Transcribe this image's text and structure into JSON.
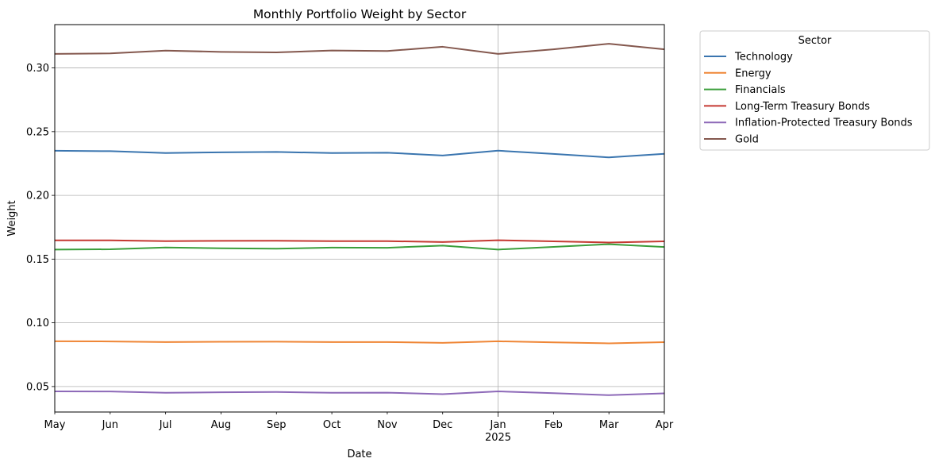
{
  "chart_data": {
    "type": "line",
    "title": "Monthly Portfolio Weight by Sector",
    "xlabel": "Date",
    "ylabel": "Weight",
    "x": [
      "2024-05",
      "2024-06",
      "2024-07",
      "2024-08",
      "2024-09",
      "2024-10",
      "2024-11",
      "2024-12",
      "2025-01",
      "2025-02",
      "2025-03",
      "2025-04"
    ],
    "x_tick_labels": [
      "May",
      "Jun",
      "Jul",
      "Aug",
      "Sep",
      "Oct",
      "Nov",
      "Dec",
      "Jan",
      "Feb",
      "Mar",
      "Apr"
    ],
    "x_major_label": {
      "at": "2025-01",
      "text": "2025"
    },
    "ylim": [
      0.03,
      0.334
    ],
    "yticks": [
      0.05,
      0.1,
      0.15,
      0.2,
      0.25,
      0.3
    ],
    "ytick_labels": [
      "0.05",
      "0.10",
      "0.15",
      "0.20",
      "0.25",
      "0.30"
    ],
    "grid": true,
    "legend": {
      "title": "Sector",
      "placement": "outside-top-right"
    },
    "series": [
      {
        "name": "Technology",
        "color": "#3a75af",
        "values": [
          0.235,
          0.2347,
          0.2332,
          0.2338,
          0.2341,
          0.2332,
          0.2335,
          0.2313,
          0.2351,
          0.2325,
          0.2298,
          0.2326
        ]
      },
      {
        "name": "Energy",
        "color": "#ef8636",
        "values": [
          0.0855,
          0.0854,
          0.0849,
          0.0851,
          0.0852,
          0.0849,
          0.0849,
          0.0843,
          0.0855,
          0.0847,
          0.0839,
          0.0848
        ]
      },
      {
        "name": "Financials",
        "color": "#3b9e3b",
        "values": [
          0.1575,
          0.1577,
          0.1591,
          0.1585,
          0.1582,
          0.159,
          0.1589,
          0.1606,
          0.1575,
          0.1596,
          0.1617,
          0.1595
        ]
      },
      {
        "name": "Long-Term Treasury Bonds",
        "color": "#c53932",
        "values": [
          0.1647,
          0.1647,
          0.1641,
          0.1643,
          0.1644,
          0.1641,
          0.1641,
          0.1634,
          0.1648,
          0.1639,
          0.163,
          0.1639
        ]
      },
      {
        "name": "Inflation-Protected Treasury Bonds",
        "color": "#8d69b8",
        "values": [
          0.0462,
          0.0461,
          0.0451,
          0.0455,
          0.0457,
          0.0451,
          0.0452,
          0.044,
          0.0462,
          0.0448,
          0.0432,
          0.0446
        ]
      },
      {
        "name": "Gold",
        "color": "#84584e",
        "values": [
          0.311,
          0.3114,
          0.3136,
          0.3126,
          0.3122,
          0.3137,
          0.3133,
          0.3166,
          0.311,
          0.3146,
          0.319,
          0.3146
        ]
      }
    ]
  }
}
